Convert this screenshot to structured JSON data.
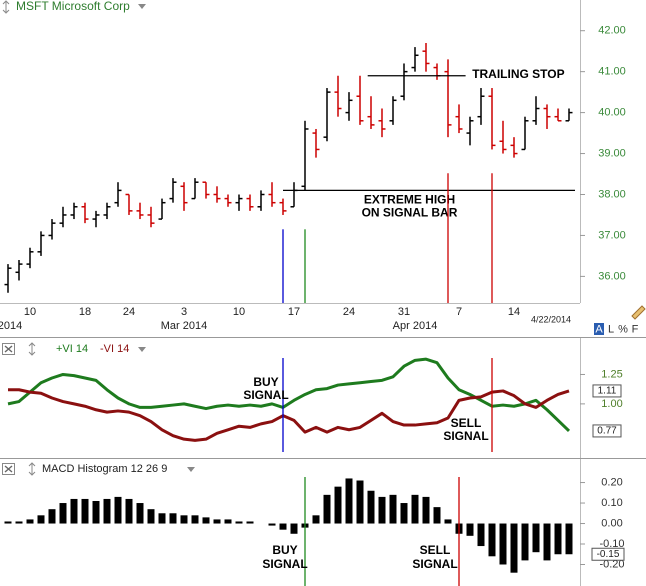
{
  "toolbar": [
    "A",
    "L",
    "%",
    "F"
  ],
  "chart_data": [
    {
      "type": "ohlc",
      "title": "MSFT Microsoft Corp",
      "categories": [
        null,
        null,
        "10",
        null,
        null,
        null,
        null,
        "18",
        null,
        null,
        null,
        "24",
        null,
        null,
        null,
        null,
        "3",
        null,
        null,
        null,
        null,
        "10",
        null,
        null,
        null,
        null,
        "17",
        null,
        null,
        null,
        null,
        "24",
        null,
        null,
        null,
        null,
        "31",
        null,
        null,
        null,
        null,
        "7",
        null,
        null,
        null,
        null,
        "14",
        null,
        null,
        null,
        null,
        null
      ],
      "month_labels": [
        "2014",
        null,
        null,
        null,
        null,
        null,
        null,
        null,
        null,
        null,
        null,
        null,
        null,
        null,
        null,
        null,
        "Mar 2014",
        null,
        null,
        null,
        null,
        null,
        null,
        null,
        null,
        null,
        null,
        null,
        null,
        null,
        null,
        null,
        null,
        null,
        null,
        null,
        null,
        "Apr 2014",
        null,
        null,
        null,
        null,
        null,
        null,
        null,
        null,
        null,
        null,
        null,
        null,
        null,
        null
      ],
      "last_date_label": "4/22/2014",
      "open": [
        35.8,
        36.1,
        36.3,
        36.6,
        37.0,
        37.3,
        37.5,
        37.7,
        37.4,
        37.5,
        37.8,
        38.0,
        37.6,
        37.5,
        37.4,
        37.9,
        38.2,
        37.9,
        38.3,
        38.0,
        37.9,
        37.8,
        37.9,
        37.7,
        38.0,
        37.8,
        37.7,
        38.2,
        39.5,
        39.4,
        40.5,
        40.0,
        40.4,
        39.9,
        39.8,
        39.8,
        40.4,
        41.1,
        41.5,
        41.1,
        41.0,
        39.9,
        39.5,
        39.9,
        40.4,
        39.3,
        39.2,
        39.1,
        39.8,
        40.1,
        39.9,
        39.8
      ],
      "high": [
        36.3,
        36.4,
        36.7,
        37.1,
        37.4,
        37.7,
        37.8,
        37.8,
        37.6,
        37.8,
        38.3,
        38.0,
        37.8,
        37.7,
        37.9,
        38.4,
        38.3,
        38.4,
        38.3,
        38.2,
        38.0,
        38.0,
        38.0,
        38.1,
        38.3,
        37.9,
        38.3,
        39.8,
        39.6,
        40.6,
        40.9,
        40.5,
        40.9,
        40.4,
        40.1,
        40.4,
        41.2,
        41.6,
        41.7,
        41.2,
        41.3,
        40.2,
        39.9,
        40.6,
        40.6,
        39.8,
        39.4,
        39.9,
        40.4,
        40.2,
        40.1,
        40.1
      ],
      "low": [
        35.6,
        35.9,
        36.2,
        36.5,
        36.9,
        37.2,
        37.4,
        37.3,
        37.2,
        37.4,
        37.7,
        37.5,
        37.4,
        37.2,
        37.4,
        37.8,
        37.6,
        37.9,
        37.9,
        37.8,
        37.7,
        37.6,
        37.6,
        37.6,
        37.7,
        37.5,
        37.7,
        38.1,
        38.9,
        39.3,
        39.9,
        39.8,
        39.7,
        39.6,
        39.4,
        39.7,
        40.3,
        41.0,
        41.0,
        40.8,
        39.4,
        39.5,
        39.2,
        39.7,
        39.1,
        39.0,
        38.9,
        39.1,
        39.7,
        39.6,
        39.8,
        39.8
      ],
      "close": [
        36.2,
        36.3,
        36.6,
        37.0,
        37.3,
        37.5,
        37.7,
        37.4,
        37.5,
        37.7,
        38.1,
        37.6,
        37.5,
        37.3,
        37.8,
        38.3,
        37.8,
        38.3,
        38.0,
        37.9,
        37.8,
        37.9,
        37.7,
        38.0,
        37.8,
        37.6,
        38.1,
        39.6,
        39.1,
        40.5,
        40.1,
        40.3,
        39.8,
        39.7,
        39.6,
        40.3,
        41.0,
        41.4,
        41.2,
        40.9,
        39.7,
        39.6,
        39.8,
        40.4,
        39.2,
        39.1,
        39.0,
        39.8,
        40.1,
        39.9,
        39.8,
        40.0
      ],
      "up_color": "#000000",
      "down_color": "#cc0000",
      "ylim": [
        35.35,
        42.75
      ],
      "yticks": [
        {
          "value": 36,
          "label": "36.00"
        },
        {
          "value": 37,
          "label": "37.00"
        },
        {
          "value": 38,
          "label": "38.00"
        },
        {
          "value": 39,
          "label": "39.00"
        },
        {
          "value": 40,
          "label": "40.00"
        },
        {
          "value": 41,
          "label": "41.00"
        },
        {
          "value": 42,
          "label": "42.00"
        }
      ],
      "reference_lines": [
        {
          "label": [
            "TRAILING STOP"
          ],
          "value": 40.9
        },
        {
          "label": [
            "EXTREME HIGH",
            "ON SIGNAL BAR"
          ],
          "value": 38.1
        }
      ]
    },
    {
      "type": "line",
      "ylim": [
        0.54,
        1.56
      ],
      "yticks": [
        {
          "value": 1,
          "label": "1.00"
        },
        1.25
      ],
      "series": [
        {
          "name": "+VI 14",
          "color": "#1e7b1e",
          "values": [
            1.0,
            1.02,
            1.1,
            1.18,
            1.22,
            1.25,
            1.24,
            1.22,
            1.2,
            1.12,
            1.05,
            1.0,
            0.97,
            0.97,
            0.98,
            0.99,
            1.0,
            0.98,
            0.96,
            0.98,
            0.99,
            0.98,
            0.99,
            0.98,
            1.0,
            0.97,
            1.03,
            1.08,
            1.12,
            1.13,
            1.16,
            1.17,
            1.18,
            1.19,
            1.2,
            1.23,
            1.32,
            1.37,
            1.38,
            1.35,
            1.22,
            1.12,
            1.08,
            1.03,
            0.98,
            0.99,
            0.98,
            1.0,
            1.03,
            0.95,
            0.86,
            0.77
          ]
        },
        {
          "name": "-VI 14",
          "color": "#8b1010",
          "values": [
            1.12,
            1.12,
            1.1,
            1.09,
            1.05,
            1.02,
            1.0,
            0.98,
            0.95,
            0.93,
            0.94,
            0.93,
            0.9,
            0.85,
            0.78,
            0.73,
            0.7,
            0.69,
            0.7,
            0.75,
            0.78,
            0.81,
            0.8,
            0.83,
            0.85,
            0.9,
            0.86,
            0.76,
            0.8,
            0.76,
            0.8,
            0.78,
            0.8,
            0.86,
            0.92,
            0.85,
            0.82,
            0.82,
            0.83,
            0.84,
            0.88,
            1.03,
            1.05,
            1.06,
            1.1,
            1.11,
            1.07,
            1.0,
            0.97,
            1.03,
            1.08,
            1.11
          ]
        }
      ],
      "annotations": [
        [
          "BUY",
          "SIGNAL"
        ],
        [
          "SELL",
          "SIGNAL"
        ]
      ]
    },
    {
      "type": "bar",
      "title": "MACD Histogram 12 26 9",
      "color": "#000000",
      "values": [
        0.01,
        0.01,
        0.02,
        0.04,
        0.07,
        0.1,
        0.12,
        0.12,
        0.11,
        0.12,
        0.13,
        0.12,
        0.1,
        0.07,
        0.05,
        0.05,
        0.04,
        0.04,
        0.03,
        0.02,
        0.02,
        0.01,
        0.01,
        0.0,
        -0.01,
        -0.03,
        -0.05,
        -0.02,
        0.04,
        0.14,
        0.18,
        0.22,
        0.21,
        0.16,
        0.13,
        0.14,
        0.1,
        0.14,
        0.13,
        0.08,
        0.02,
        -0.05,
        -0.06,
        -0.11,
        -0.16,
        -0.2,
        -0.24,
        -0.18,
        -0.14,
        -0.18,
        -0.15,
        -0.15
      ],
      "ylim": [
        -0.305,
        0.315
      ],
      "yticks": [
        {
          "value": -0.2,
          "label": "-0.20"
        },
        {
          "value": -0.1,
          "label": "-0.10"
        },
        {
          "value": 0,
          "label": "0.00"
        },
        {
          "value": 0.1,
          "label": "0.10"
        },
        {
          "value": 0.2,
          "label": "0.20"
        }
      ],
      "annotations": [
        [
          "BUY",
          "SIGNAL"
        ],
        [
          "SELL",
          "SIGNAL"
        ]
      ]
    }
  ]
}
